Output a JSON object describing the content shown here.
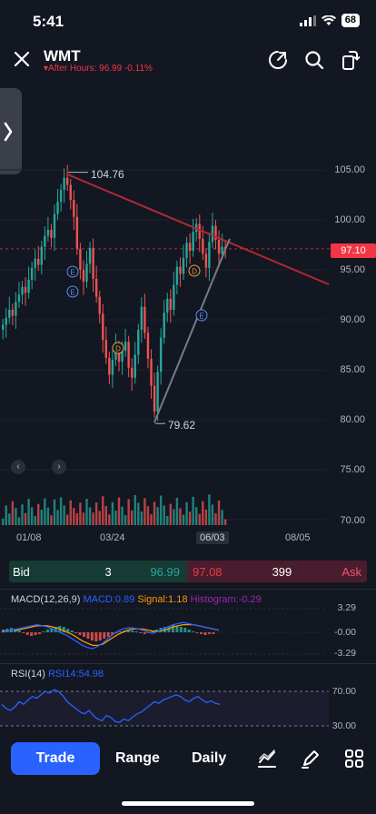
{
  "status_bar": {
    "time": "5:41",
    "battery": "68"
  },
  "header": {
    "symbol": "WMT",
    "after_hours": "After Hours: 96.99 -0.11%"
  },
  "chart": {
    "y_axis": [
      "105.00",
      "100.00",
      "95.00",
      "90.00",
      "85.00",
      "80.00",
      "75.00",
      "70.00"
    ],
    "x_axis": [
      "01/08",
      "03/24",
      "06/03",
      "08/05"
    ],
    "current_price": "97.10",
    "high_label": "104.76",
    "low_label": "79.62",
    "event_markers": [
      "E",
      "E",
      "D",
      "D",
      "E"
    ],
    "nav_left": "‹",
    "nav_right": "›"
  },
  "chart_data": {
    "type": "candlestick",
    "xlabel": "",
    "ylabel": "",
    "ylim": [
      70,
      106
    ],
    "x_ticks": [
      "01/08",
      "03/24",
      "06/03",
      "08/05"
    ],
    "y_ticks": [
      70,
      75,
      80,
      85,
      90,
      95,
      100,
      105
    ],
    "series": [
      {
        "close": [
          89.5,
          90.2,
          91.0,
          90.4,
          91.8,
          92.5,
          93.3,
          92.7,
          94.0,
          95.2,
          96.1,
          95.5,
          97.3,
          98.4,
          99.0,
          98.2,
          100.6,
          101.8,
          103.0,
          104.2,
          103.5,
          102.0,
          100.3,
          97.1,
          95.0,
          93.8,
          95.6,
          97.2,
          94.1,
          92.3,
          90.6,
          88.0,
          86.2,
          84.5,
          86.0,
          87.3,
          85.8,
          86.9,
          87.8,
          85.2,
          84.2,
          86.5,
          89.0,
          91.3,
          88.7,
          86.1,
          83.4,
          80.8,
          84.8,
          88.2,
          90.7,
          92.1,
          91.0,
          93.5,
          95.3,
          94.6,
          96.2,
          97.7,
          96.9,
          98.8,
          99.6,
          98.1,
          96.6,
          95.2,
          97.8,
          99.4,
          98.0,
          96.6,
          97.3,
          97.1
        ]
      }
    ],
    "annotations": {
      "high": 104.76,
      "low": 79.62,
      "last": 97.1
    }
  },
  "bidask": {
    "bid_label": "Bid",
    "bid_size": "3",
    "bid_price": "96.99",
    "ask_price": "97.08",
    "ask_size": "399",
    "ask_label": "Ask"
  },
  "macd": {
    "title": "MACD(12,26,9)",
    "macd_value": "MACD:0.89",
    "signal_value": "Signal:1.18",
    "histogram_value": "Histogram:-0.29",
    "axis": [
      "3.29",
      "-0.00",
      "-3.29"
    ]
  },
  "rsi": {
    "title": "RSI(14)",
    "value": "RSI14:54.98",
    "axis": [
      "70.00",
      "30.00"
    ]
  },
  "toolbar": {
    "trade": "Trade",
    "range": "Range",
    "interval": "Daily"
  },
  "colors": {
    "up": "#26a69a",
    "down": "#ef5350",
    "accent": "#2962ff",
    "trendline_red": "#b22833",
    "trendline_gray": "#787b86"
  }
}
